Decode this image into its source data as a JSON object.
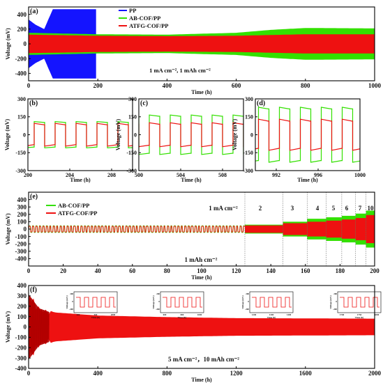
{
  "colors": {
    "PP": "#1414ff",
    "AB": "#33e000",
    "ATFG": "#ee1111"
  },
  "chart_data": [
    {
      "panel": "(a)",
      "type": "line",
      "xlabel": "Time (h)",
      "ylabel": "Voltage (mV)",
      "xlim": [
        0,
        1000
      ],
      "ylim": [
        -500,
        500
      ],
      "xticks": [
        0,
        200,
        400,
        600,
        800,
        1000
      ],
      "yticks": [
        -400,
        -200,
        0,
        200,
        400
      ],
      "legend": "top-right",
      "annotation": "1 mA cm⁻², 1 mAh cm⁻²",
      "series": [
        {
          "name": "PP",
          "key": "PP",
          "amplitude": [
            [
              0,
              330
            ],
            [
              20,
              260
            ],
            [
              45,
              200
            ],
            [
              70,
              470
            ],
            [
              195,
              470
            ]
          ],
          "end": 195
        },
        {
          "name": "AB-COF/PP",
          "key": "AB",
          "amplitude": [
            [
              0,
              150
            ],
            [
              200,
              130
            ],
            [
              400,
              125
            ],
            [
              600,
              150
            ],
            [
              700,
              190
            ],
            [
              800,
              215
            ],
            [
              1000,
              210
            ]
          ]
        },
        {
          "name": "ATFG-COF/PP",
          "key": "ATFG",
          "amplitude": [
            [
              0,
              125
            ],
            [
              200,
              110
            ],
            [
              400,
              105
            ],
            [
              600,
              110
            ],
            [
              800,
              130
            ],
            [
              1000,
              130
            ]
          ]
        }
      ]
    },
    {
      "panel": "(b)",
      "type": "line",
      "xlabel": "Time (h)",
      "ylabel": "Voltage (mV)",
      "xlim": [
        200,
        210
      ],
      "ylim": [
        -300,
        300
      ],
      "xticks": [
        200,
        204,
        208
      ],
      "yticks": [
        -300,
        -150,
        0,
        150,
        300
      ],
      "period": 2,
      "x0": 200.6,
      "series": [
        {
          "key": "AB",
          "level": 110
        },
        {
          "key": "ATFG",
          "level": 95
        }
      ]
    },
    {
      "panel": "(c)",
      "type": "line",
      "xlabel": "Time (h)",
      "ylabel": "Voltage (mV)",
      "xlim": [
        500,
        510
      ],
      "ylim": [
        -300,
        300
      ],
      "xticks": [
        500,
        504,
        508
      ],
      "yticks": [
        -300,
        -150,
        0,
        150,
        300
      ],
      "period": 2,
      "x0": 501,
      "series": [
        {
          "key": "AB",
          "level": 165
        },
        {
          "key": "ATFG",
          "level": 100
        }
      ]
    },
    {
      "panel": "(d)",
      "type": "line",
      "xlabel": "Time (h)",
      "ylabel": "Voltage (mV)",
      "xlim": [
        990,
        1000
      ],
      "ylim": [
        -300,
        300
      ],
      "xticks": [
        992,
        996,
        1000
      ],
      "yticks": [
        -300,
        -150,
        0,
        150,
        300
      ],
      "period": 2,
      "x0": 990.3,
      "series": [
        {
          "key": "AB",
          "level": 230
        },
        {
          "key": "ATFG",
          "level": 130
        }
      ]
    },
    {
      "panel": "(e)",
      "type": "line",
      "xlabel": "Time (h)",
      "ylabel": "Voltage (mV)",
      "xlim": [
        0,
        200
      ],
      "ylim": [
        -500,
        500
      ],
      "xticks": [
        0,
        20,
        40,
        60,
        80,
        100,
        120,
        140,
        160,
        180,
        200
      ],
      "yticks": [
        -400,
        -300,
        -200,
        -100,
        0,
        100,
        200,
        300,
        400
      ],
      "legend": "top-left",
      "annotation": "1 mAh cm⁻²",
      "rate_labels": [
        "1 mA cm⁻²",
        "2",
        "3",
        "4",
        "5",
        "6",
        "7",
        "10"
      ],
      "segments": [
        {
          "x0": 0,
          "x1": 125,
          "rate": 1,
          "AB": 45,
          "ATFG": 40
        },
        {
          "x0": 125,
          "x1": 147,
          "rate": 2,
          "AB": 60,
          "ATFG": 50
        },
        {
          "x0": 147,
          "x1": 161,
          "rate": 3,
          "AB": 100,
          "ATFG": 80
        },
        {
          "x0": 161,
          "x1": 172,
          "rate": 4,
          "AB": 140,
          "ATFG": 100
        },
        {
          "x0": 172,
          "x1": 181,
          "rate": 5,
          "AB": 160,
          "ATFG": 115
        },
        {
          "x0": 181,
          "x1": 189,
          "rate": 6,
          "AB": 180,
          "ATFG": 130
        },
        {
          "x0": 189,
          "x1": 195,
          "rate": 7,
          "AB": 210,
          "ATFG": 150
        },
        {
          "x0": 195,
          "x1": 200,
          "rate": 10,
          "AB": 250,
          "ATFG": 190
        }
      ],
      "series": [
        {
          "name": "AB-COF/PP",
          "key": "AB"
        },
        {
          "name": "ATFG-COF/PP",
          "key": "ATFG"
        }
      ]
    },
    {
      "panel": "(f)",
      "type": "line",
      "xlabel": "Time (h)",
      "ylabel": "Voltage (mV)",
      "xlim": [
        0,
        2000
      ],
      "ylim": [
        -400,
        400
      ],
      "xticks": [
        0,
        400,
        800,
        1200,
        1600,
        2000
      ],
      "yticks": [
        -400,
        -300,
        -200,
        -100,
        0,
        100,
        200,
        300,
        400
      ],
      "annotation": "5 mA cm⁻²，10 mAh cm⁻²",
      "amplitude": [
        [
          0,
          350
        ],
        [
          60,
          200
        ],
        [
          150,
          140
        ],
        [
          400,
          110
        ],
        [
          800,
          95
        ],
        [
          1200,
          85
        ],
        [
          2000,
          80
        ]
      ],
      "series": [
        {
          "key": "ATFG"
        }
      ],
      "insets": [
        {
          "xticks": [
            "200",
            "500",
            "2000"
          ],
          "yticks": [
            "-200",
            "0",
            "200"
          ]
        },
        {
          "xticks": [
            "600",
            "800",
            "1000"
          ],
          "yticks": [
            "-200",
            "0",
            "200"
          ]
        },
        {
          "xticks": [
            "1200",
            "1300",
            "1400"
          ],
          "yticks": [
            "-200",
            "0",
            "200"
          ]
        },
        {
          "xticks": [
            "1700",
            "1750",
            "1800"
          ],
          "yticks": [
            "-200",
            "0",
            "200"
          ]
        }
      ],
      "inset_xlabel": "Time (h)",
      "inset_ylabel": "Voltage (mV)"
    }
  ]
}
